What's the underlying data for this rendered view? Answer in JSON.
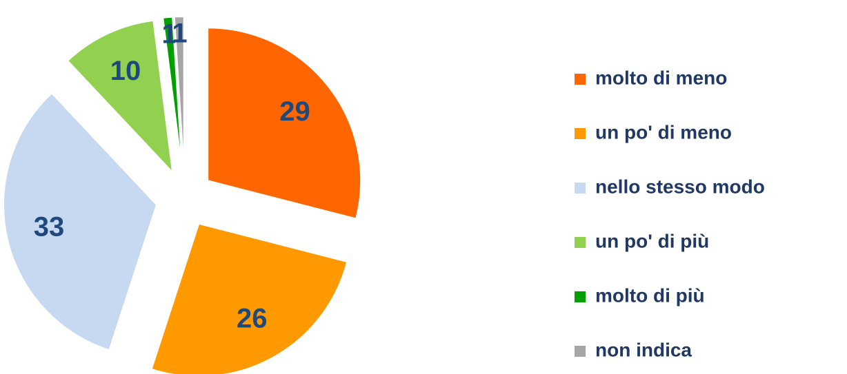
{
  "chart_data": {
    "type": "pie",
    "categories": [
      "molto di meno",
      "un po' di meno",
      "nello stesso modo",
      "un po' di più",
      "molto di più",
      "non indica"
    ],
    "values": [
      29,
      26,
      33,
      10,
      1,
      1
    ],
    "colors": [
      "#ff6600",
      "#ff9900",
      "#c6d9f1",
      "#92d050",
      "#00a000",
      "#a6a6a6"
    ],
    "legend": "right"
  }
}
